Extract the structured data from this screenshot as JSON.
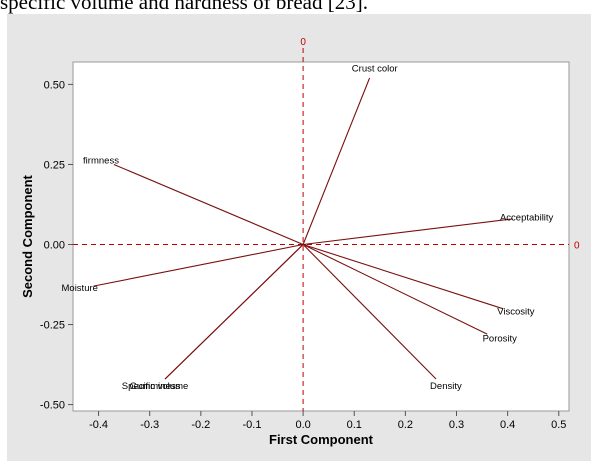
{
  "caption": "specific volume and hardness of bread [23].",
  "chart_data": {
    "type": "scatter",
    "subtype": "loading plot",
    "xlabel": "First Component",
    "ylabel": "Second Component",
    "xlim": [
      -0.45,
      0.52
    ],
    "ylim": [
      -0.52,
      0.57
    ],
    "xticks": [
      "-0.4",
      "-0.3",
      "-0.2",
      "-0.1",
      "0.0",
      "0.1",
      "0.2",
      "0.3",
      "0.4",
      "0.5"
    ],
    "yticks": [
      "0.50",
      "0.25",
      "0.00",
      "-0.25",
      "-0.50"
    ],
    "reference_lines": {
      "x0_label": "0",
      "y0_label": "0"
    },
    "vectors": [
      {
        "label": "Crust color",
        "x": 0.13,
        "y": 0.52
      },
      {
        "label": "firmness",
        "x": -0.37,
        "y": 0.25
      },
      {
        "label": "Acceptability",
        "x": 0.41,
        "y": 0.08
      },
      {
        "label": "Moisture",
        "x": -0.41,
        "y": -0.13
      },
      {
        "label": "Viscosity",
        "x": 0.39,
        "y": -0.2
      },
      {
        "label": "Porosity",
        "x": 0.36,
        "y": -0.28
      },
      {
        "label": "Density",
        "x": 0.26,
        "y": -0.42
      },
      {
        "label": "Specific volume",
        "x": -0.27,
        "y": -0.42
      },
      {
        "label": "Gumminess",
        "x": -0.27,
        "y": -0.42
      }
    ],
    "colors": {
      "vector": "#7a1010",
      "reference": "#c00000",
      "background": "#e6e6e6",
      "plot_area": "#ffffff"
    }
  }
}
